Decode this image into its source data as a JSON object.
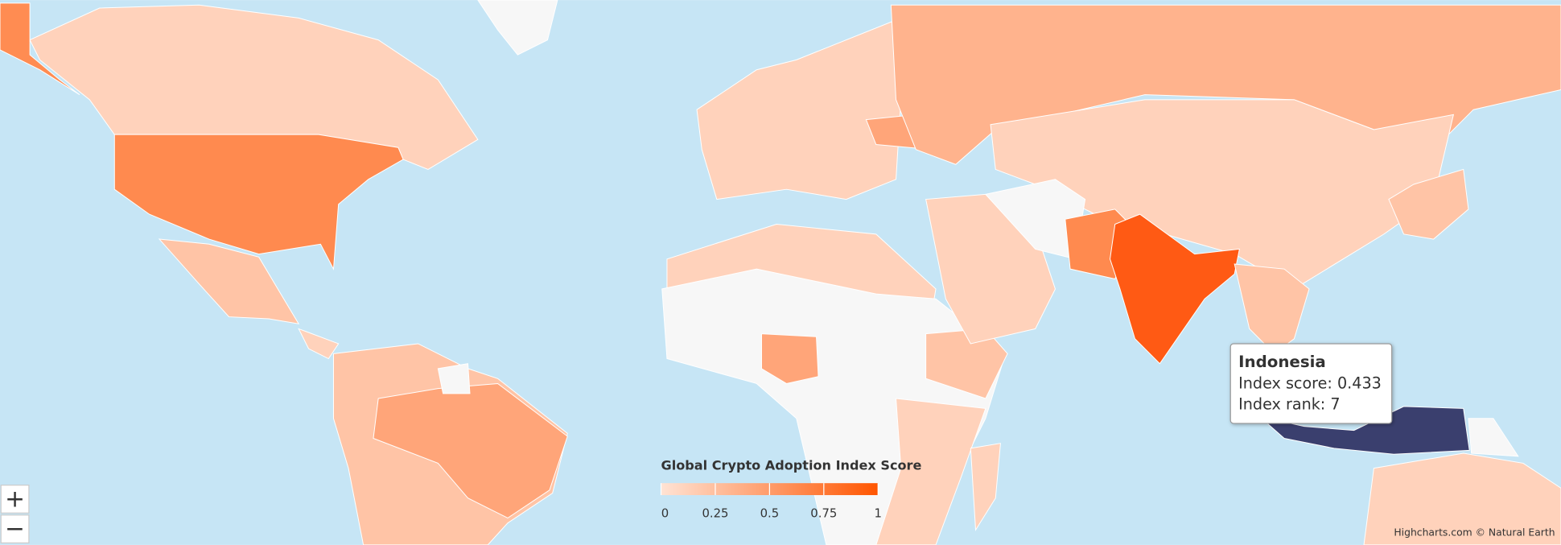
{
  "legend": {
    "title": "Global Crypto Adoption Index Score",
    "min": 0,
    "max": 1,
    "ticks": [
      0,
      0.25,
      0.5,
      0.75,
      1
    ],
    "minColor": "#ffe3d4",
    "maxColor": "#ff5500"
  },
  "tooltip": {
    "title": "Indonesia",
    "rows": [
      {
        "label": "Index score:",
        "value": 0.433
      },
      {
        "label": "Index rank:",
        "value": 7
      }
    ]
  },
  "zoom": {
    "in": "+",
    "out": "−"
  },
  "credits": "Highcharts.com © Natural Earth"
}
